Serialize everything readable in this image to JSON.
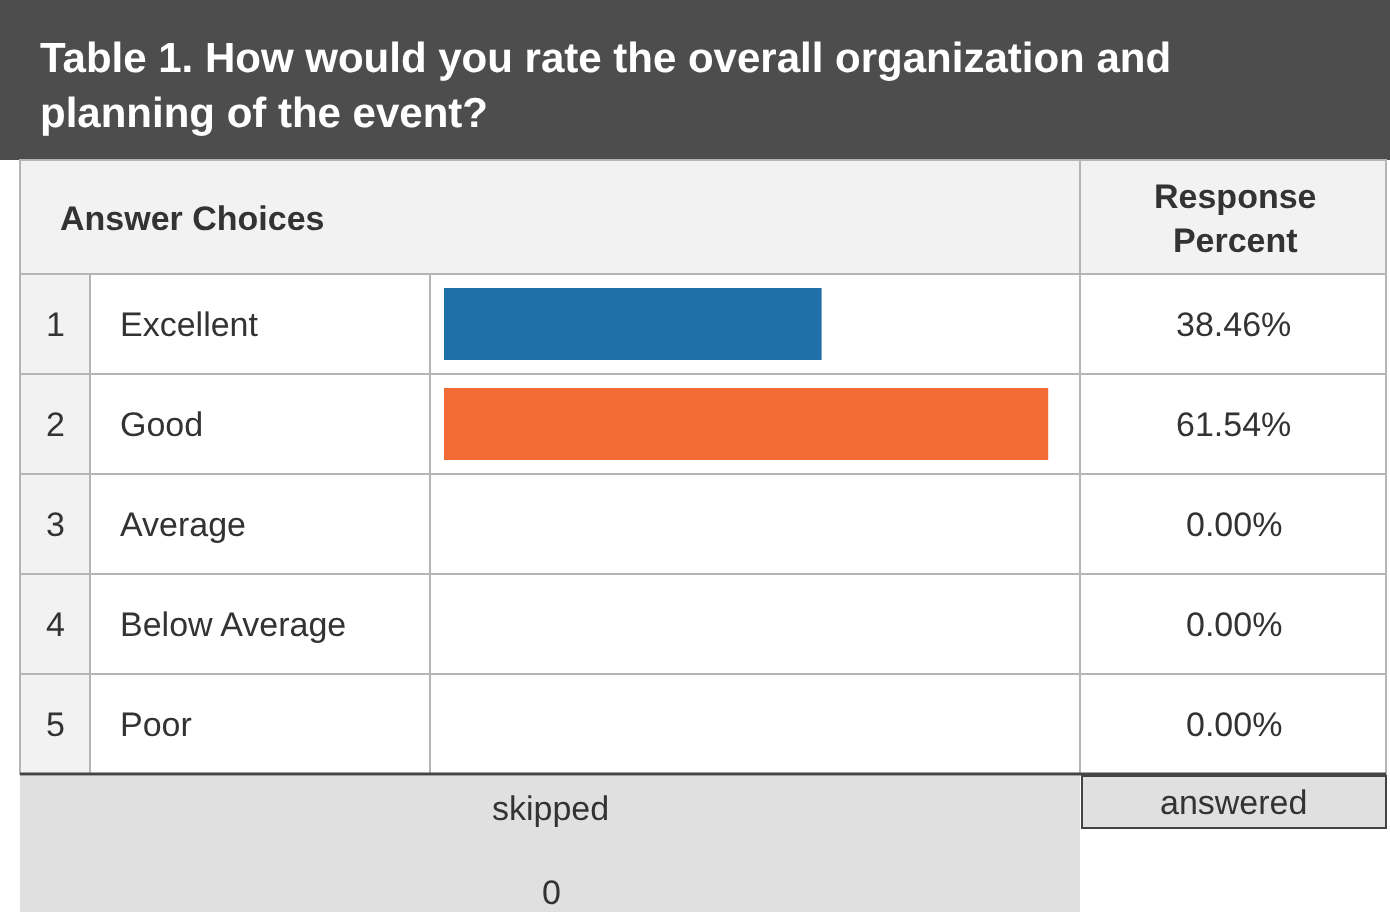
{
  "chart_data": {
    "type": "bar",
    "orientation": "horizontal",
    "title": "Table 1. How would you rate the overall organization and planning of the event?",
    "categories": [
      "Excellent",
      "Good",
      "Average",
      "Below Average",
      "Poor"
    ],
    "values": [
      38.46,
      61.54,
      0,
      0,
      0
    ],
    "colors": [
      "#1f6fa8",
      "#f26b35",
      null,
      null,
      null
    ],
    "value_labels": [
      "38.46%",
      "61.54%",
      "0.00%",
      "0.00%",
      "0.00%"
    ],
    "annotations": [
      "Answer Choices",
      "Response Percent",
      "1",
      "2",
      "3",
      "4",
      "5",
      "skipped",
      "0",
      "answered"
    ],
    "grid": false,
    "legend": false
  }
}
